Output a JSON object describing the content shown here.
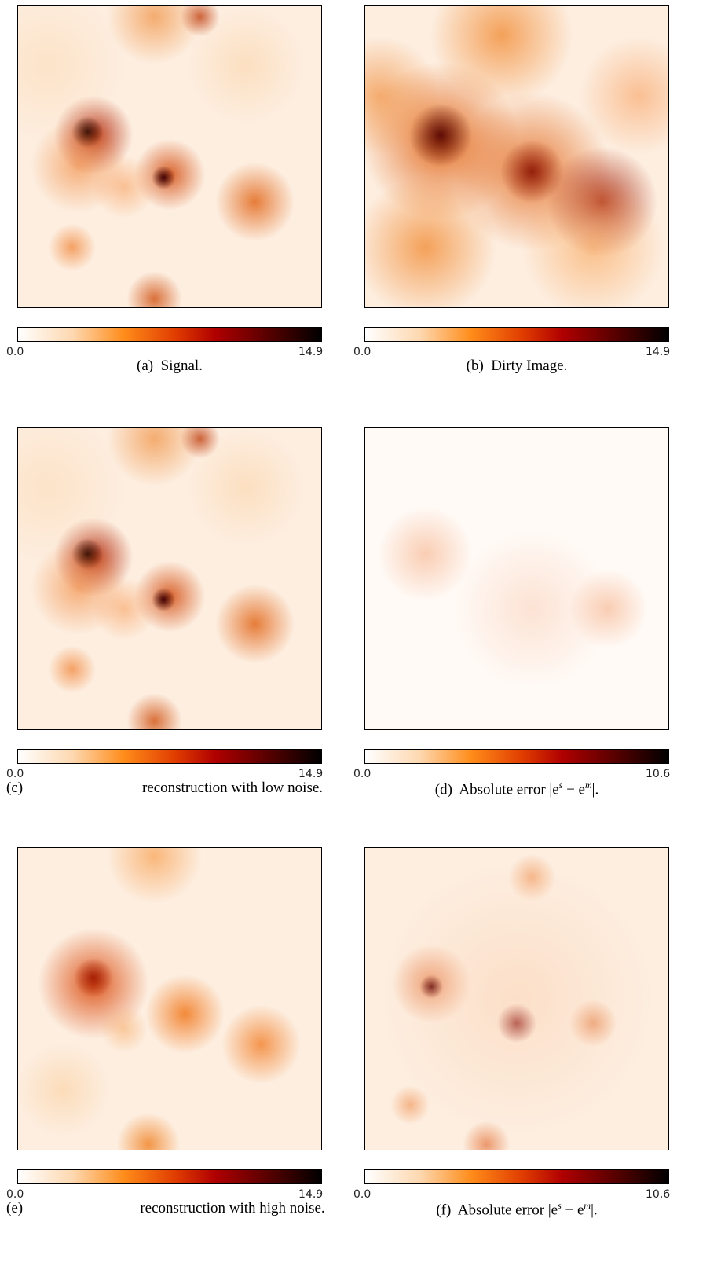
{
  "panels": [
    {
      "label": "(a)",
      "parts": [
        "Signal."
      ],
      "cb_min": "0.0",
      "cb_max": "14.9"
    },
    {
      "label": "(b)",
      "parts": [
        "Dirty Image."
      ],
      "cb_min": "0.0",
      "cb_max": "14.9"
    },
    {
      "label": "(c)",
      "parts": [
        "reconstruction with low noise."
      ],
      "cb_min": "0.0",
      "cb_max": "14.9"
    },
    {
      "label": "(d)",
      "parts": [
        "Absolute error |e",
        "s",
        " − e",
        "m",
        "|."
      ],
      "cb_min": "0.0",
      "cb_max": "10.6"
    },
    {
      "label": "(e)",
      "parts": [
        "reconstruction with high noise."
      ],
      "cb_min": "0.0",
      "cb_max": "14.9"
    },
    {
      "label": "(f)",
      "parts": [
        "Absolute error |e",
        "s",
        " − e",
        "m",
        "|."
      ],
      "cb_min": "0.0",
      "cb_max": "10.6"
    }
  ]
}
